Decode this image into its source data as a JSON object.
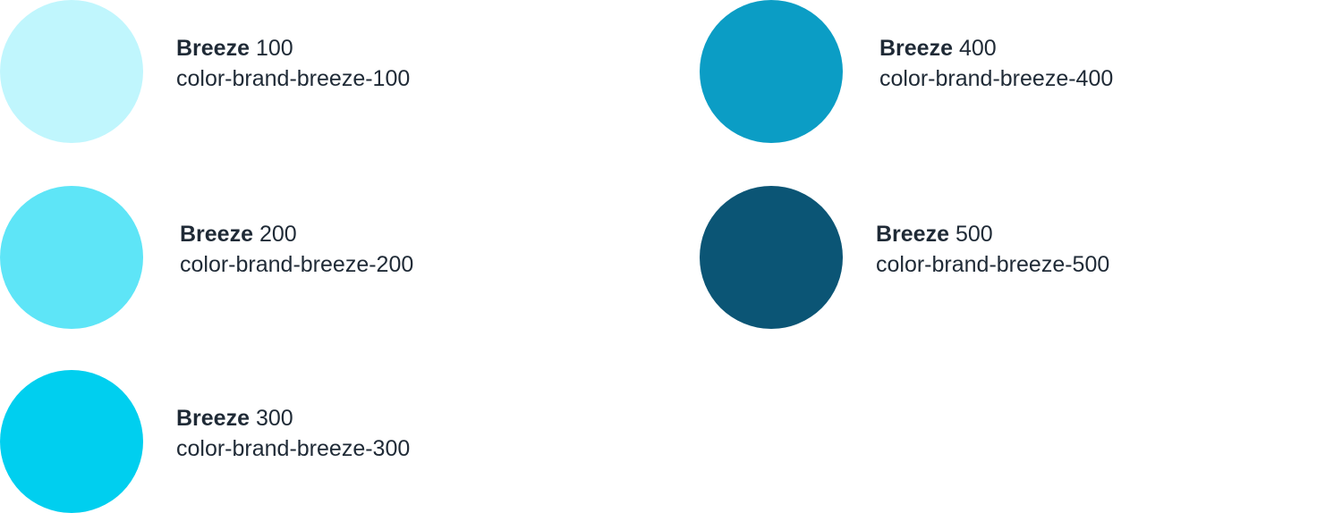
{
  "swatches": [
    {
      "name_bold": "Breeze",
      "name_level": "100",
      "token": "color-brand-breeze-100",
      "color": "#c0f6fd"
    },
    {
      "name_bold": "Breeze",
      "name_level": "200",
      "token": "color-brand-breeze-200",
      "color": "#5ee5f7"
    },
    {
      "name_bold": "Breeze",
      "name_level": "300",
      "token": "color-brand-breeze-300",
      "color": "#00cfef"
    },
    {
      "name_bold": "Breeze",
      "name_level": "400",
      "token": "color-brand-breeze-400",
      "color": "#0b9dc5"
    },
    {
      "name_bold": "Breeze",
      "name_level": "500",
      "token": "color-brand-breeze-500",
      "color": "#0b5575"
    }
  ],
  "text_color": "#1f2a36"
}
